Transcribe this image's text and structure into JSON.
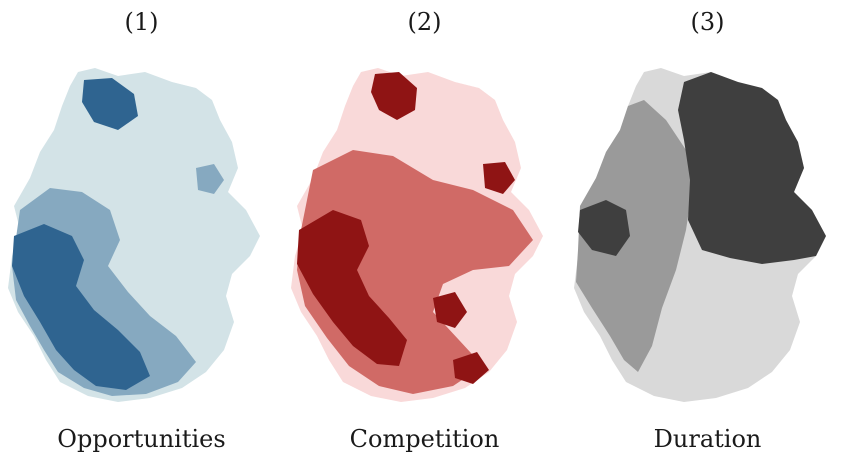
{
  "maps": [
    {
      "number": "(1)",
      "label": "Opportunities",
      "palette": {
        "light": "#d3e3e7",
        "mid": "#86a9c0",
        "dark": "#2f6490"
      }
    },
    {
      "number": "(2)",
      "label": "Competition",
      "palette": {
        "light": "#f9d9d9",
        "mid": "#d06a66",
        "dark": "#8f1414"
      }
    },
    {
      "number": "(3)",
      "label": "Duration",
      "palette": {
        "light": "#d9d9d9",
        "mid": "#9a9a9a",
        "dark": "#3f3f3f"
      }
    }
  ]
}
